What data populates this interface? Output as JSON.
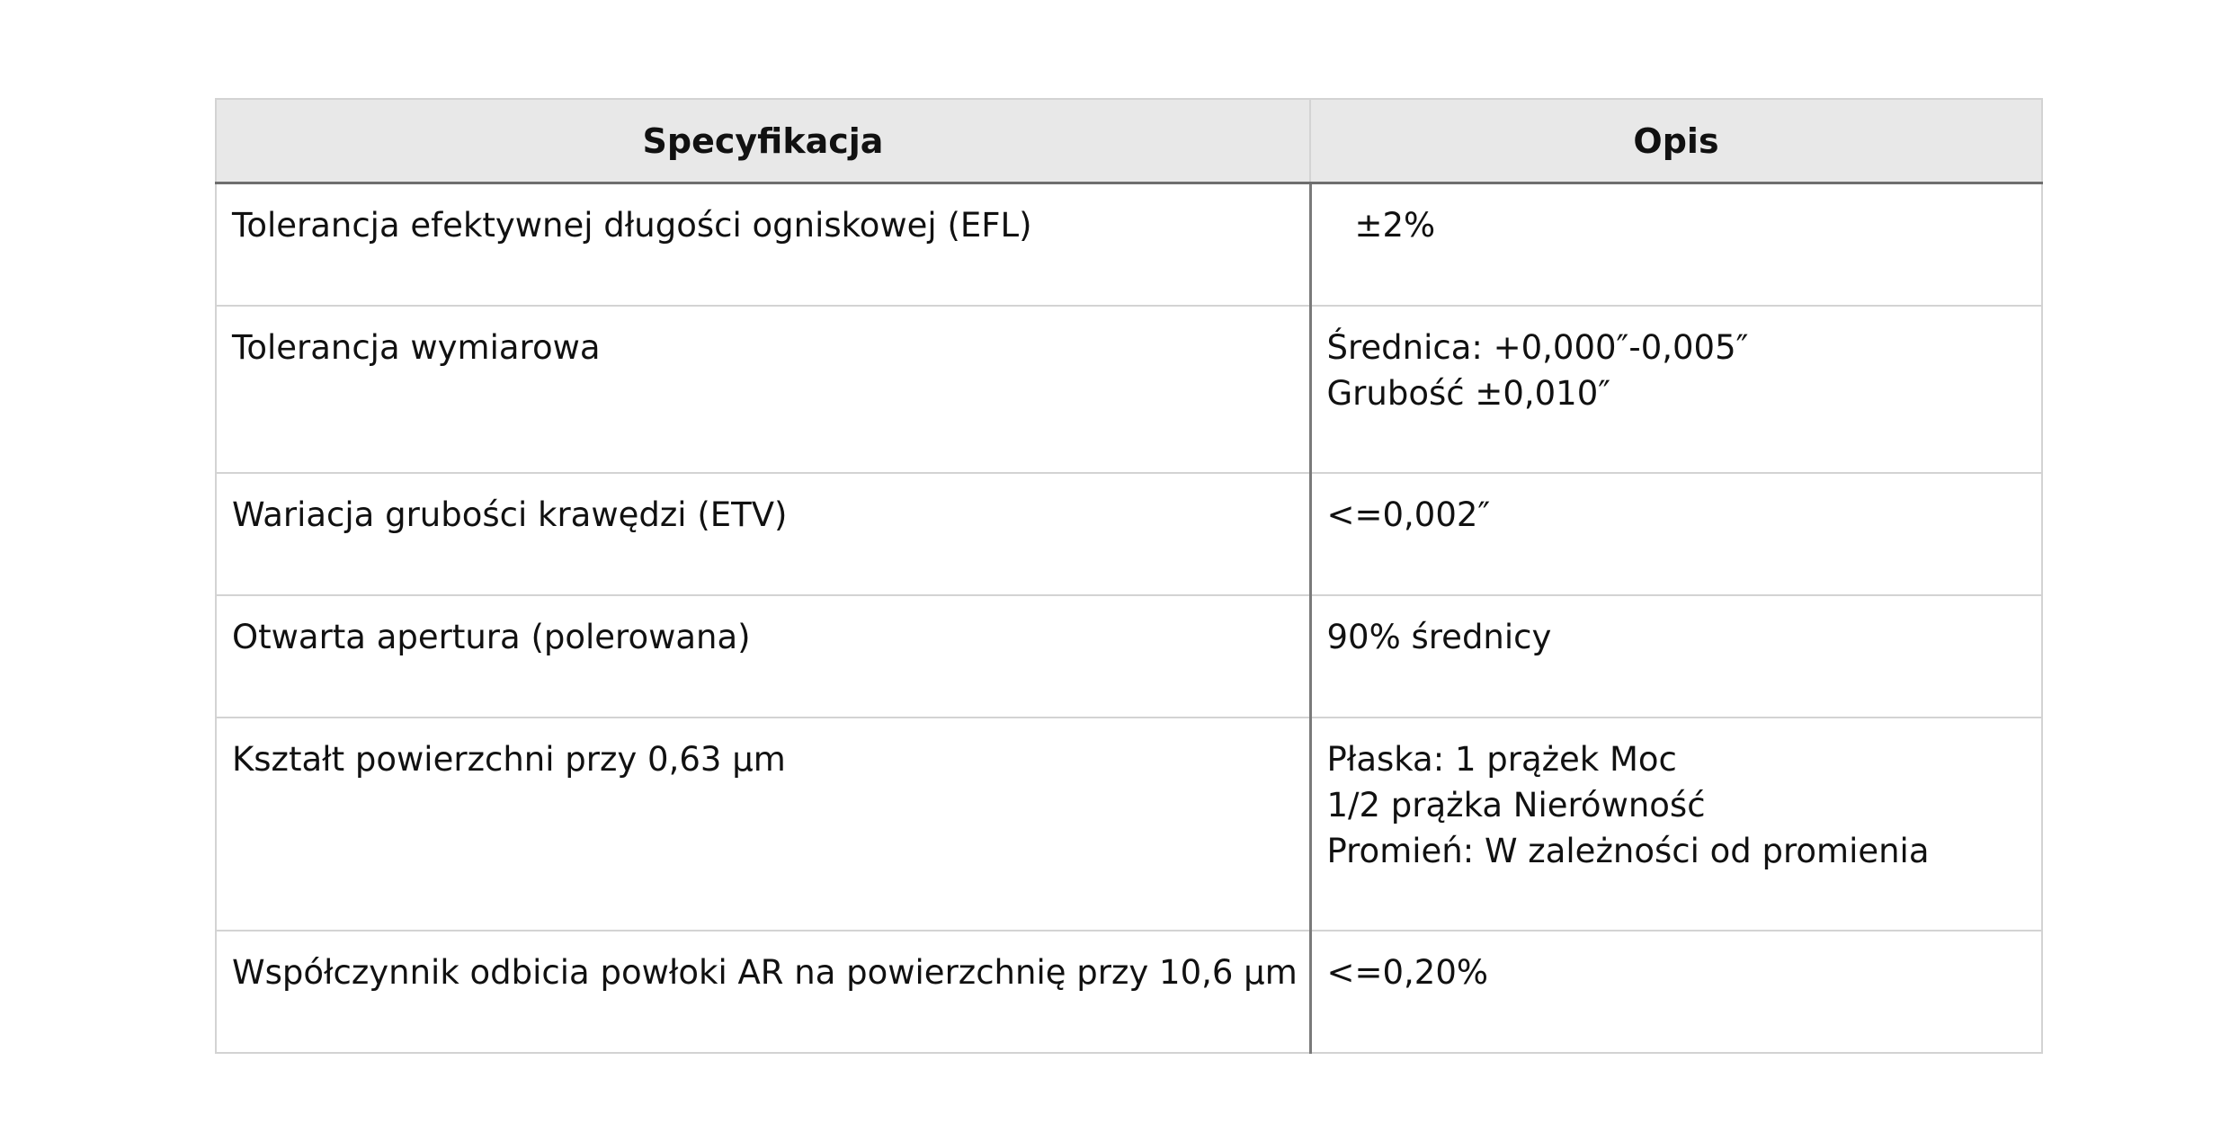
{
  "table": {
    "headers": {
      "specification": "Specyfikacja",
      "description": "Opis"
    },
    "rows": [
      {
        "spec": "Tolerancja efektywnej długości ogniskowej (EFL)",
        "desc": [
          "±2%"
        ]
      },
      {
        "spec": "Tolerancja wymiarowa",
        "desc": [
          "Średnica: +0,000″-0,005″",
          "Grubość ±0,010″"
        ]
      },
      {
        "spec": "Wariacja grubości krawędzi (ETV)",
        "desc": [
          "<=0,002″"
        ]
      },
      {
        "spec": "Otwarta apertura (polerowana)",
        "desc": [
          "90% średnicy"
        ]
      },
      {
        "spec": "Kształt powierzchni przy 0,63 µm",
        "desc": [
          "Płaska: 1 prążek Moc",
          "1/2 prążka Nierówność",
          "Promień: W zależności od promienia"
        ]
      },
      {
        "spec": "Współczynnik odbicia powłoki AR na powierzchnię przy 10,6 µm",
        "desc": [
          "<=0,20%"
        ]
      }
    ]
  }
}
